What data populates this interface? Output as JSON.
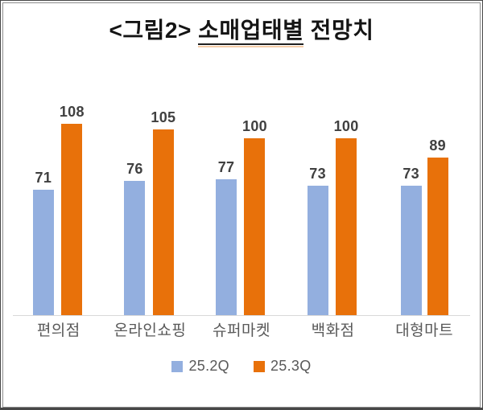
{
  "title": {
    "prefix": "<그림2> ",
    "underlined_word": "소매업태별",
    "suffix": " 전망치"
  },
  "chart_data": {
    "type": "bar",
    "title": "<그림2> 소매업태별 전망치",
    "categories": [
      "편의점",
      "온라인쇼핑",
      "슈퍼마켓",
      "백화점",
      "대형마트"
    ],
    "series": [
      {
        "name": "25.2Q",
        "color": "#93AFDF",
        "values": [
          71,
          76,
          77,
          73,
          73
        ]
      },
      {
        "name": "25.3Q",
        "color": "#E8710A",
        "values": [
          108,
          105,
          100,
          100,
          89
        ]
      }
    ],
    "value_labels_shown": true,
    "ylim": [
      0,
      115
    ],
    "grid": false,
    "legend_position": "bottom",
    "axis_line_color": "#D9D9D9"
  },
  "colors": {
    "value_label": "#404040",
    "category_label": "#595959",
    "legend_label": "#595959",
    "title_underline_accent": "#F6CDA9"
  }
}
